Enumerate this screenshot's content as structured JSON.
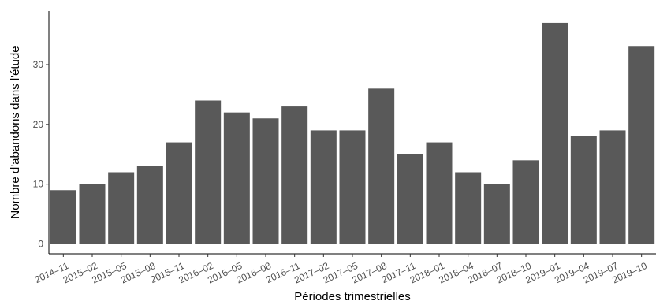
{
  "chart_data": {
    "type": "bar",
    "title": "",
    "xlabel": "Périodes trimestrielles",
    "ylabel": "Nombre d'abandons dans l'étude",
    "categories": [
      "2014–11",
      "2015–02",
      "2015–05",
      "2015–08",
      "2015–11",
      "2016–02",
      "2016–05",
      "2016–08",
      "2016–11",
      "2017–02",
      "2017–05",
      "2017–08",
      "2017–11",
      "2018–01",
      "2018–04",
      "2018–07",
      "2018–10",
      "2019–01",
      "2019–04",
      "2019–07",
      "2019–10"
    ],
    "values": [
      9,
      10,
      12,
      13,
      17,
      24,
      22,
      21,
      23,
      19,
      19,
      26,
      15,
      17,
      12,
      10,
      14,
      37,
      18,
      19,
      33
    ],
    "ylim": [
      0,
      39
    ],
    "yticks": [
      0,
      10,
      20,
      30
    ],
    "grid": false,
    "legend": "none",
    "colors": {
      "bar": "#595959",
      "axis": "#000000",
      "tick_text": "#4d4d4d"
    }
  }
}
